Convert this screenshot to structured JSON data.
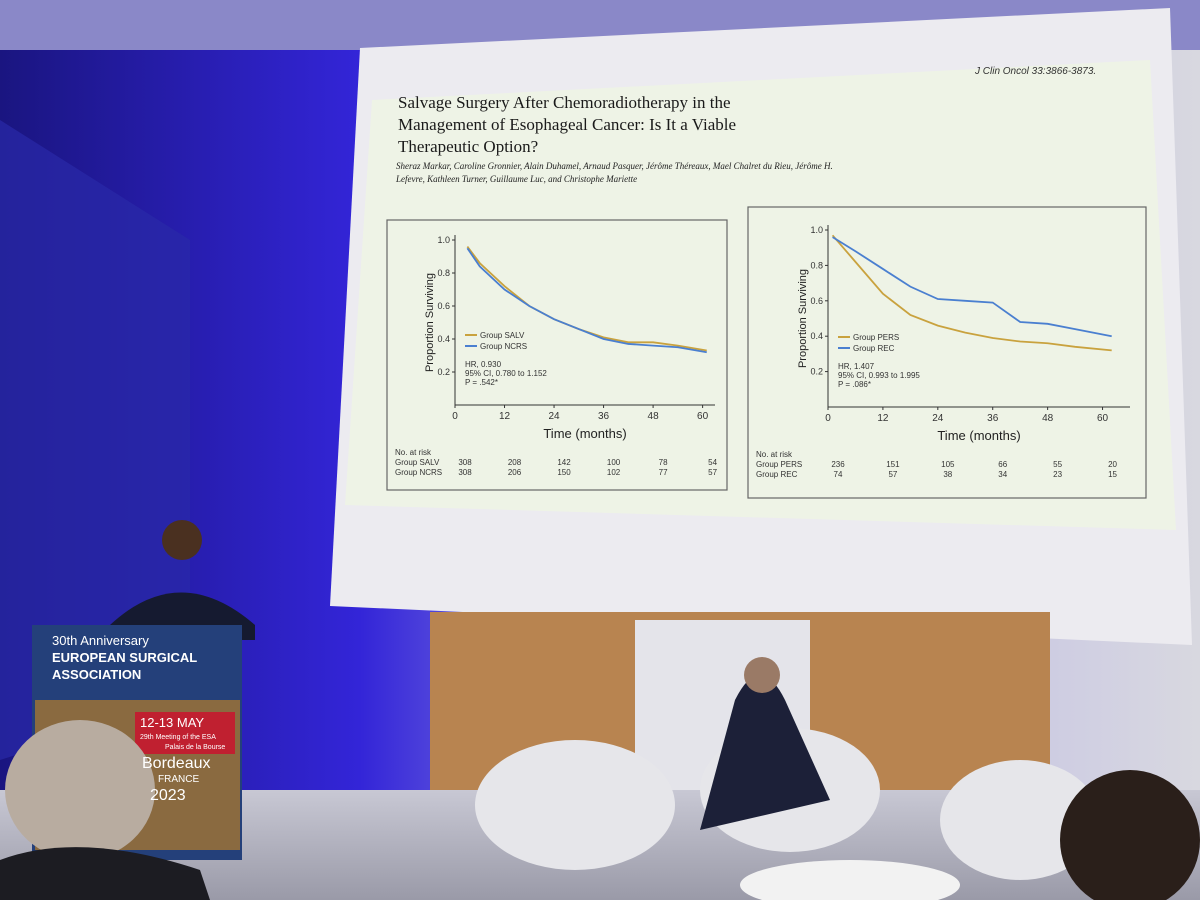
{
  "slide": {
    "citation": "J Clin Oncol 33:3866-3873.",
    "title": "Salvage Surgery After Chemoradiotherapy in the Management of Esophageal Cancer: Is It a Viable Therapeutic Option?",
    "authors": "Sheraz Markar, Caroline Gronnier, Alain Duhamel, Arnaud Pasquer, Jérôme Théreaux, Mael Chalret du Rieu, Jérôme H. Lefevre, Kathleen Turner, Guillaume Luc, and Christophe Mariette"
  },
  "chart_data": [
    {
      "type": "line",
      "x_label": "Time (months)",
      "y_label": "Proportion Surviving",
      "x": [
        3,
        6,
        12,
        18,
        24,
        30,
        36,
        42,
        48,
        54,
        61
      ],
      "series": [
        {
          "name": "Group SALV",
          "color": "#c9a23e",
          "values": [
            0.96,
            0.86,
            0.72,
            0.6,
            0.52,
            0.46,
            0.41,
            0.38,
            0.38,
            0.36,
            0.33
          ]
        },
        {
          "name": "Group NCRS",
          "color": "#4a7fd0",
          "values": [
            0.95,
            0.84,
            0.7,
            0.6,
            0.52,
            0.46,
            0.4,
            0.37,
            0.36,
            0.35,
            0.32
          ]
        }
      ],
      "xlim": [
        0,
        63
      ],
      "xticks": [
        0,
        12,
        24,
        36,
        48,
        60
      ],
      "ylim": [
        0,
        1
      ],
      "yticks": [
        0.2,
        0.4,
        0.6,
        0.8,
        {
          "value": 1,
          "label": "1.0"
        }
      ],
      "annotations": [
        "HR, 0.930",
        "95% CI, 0.780 to 1.152",
        "P = .542*"
      ],
      "risk_table": {
        "label": "No. at risk",
        "rows": [
          {
            "name": "Group SALV",
            "values": [
              308,
              208,
              142,
              100,
              78,
              54
            ]
          },
          {
            "name": "Group NCRS",
            "values": [
              308,
              206,
              150,
              102,
              77,
              57
            ]
          }
        ]
      }
    },
    {
      "type": "line",
      "x_label": "Time (months)",
      "y_label": "Proportion Surviving",
      "x": [
        1,
        6,
        12,
        18,
        24,
        30,
        36,
        42,
        48,
        54,
        62
      ],
      "series": [
        {
          "name": "Group PERS",
          "color": "#c9a23e",
          "values": [
            0.97,
            0.82,
            0.64,
            0.52,
            0.46,
            0.42,
            0.39,
            0.37,
            0.36,
            0.34,
            0.32
          ]
        },
        {
          "name": "Group REC",
          "color": "#4a7fd0",
          "values": [
            0.96,
            0.88,
            0.78,
            0.68,
            0.61,
            0.6,
            0.59,
            0.48,
            0.47,
            0.44,
            0.4
          ]
        }
      ],
      "xlim": [
        0,
        66
      ],
      "xticks": [
        0,
        12,
        24,
        36,
        48,
        60
      ],
      "ylim": [
        0,
        1
      ],
      "yticks": [
        0.2,
        0.4,
        0.6,
        0.8,
        {
          "value": 1,
          "label": "1.0"
        }
      ],
      "annotations": [
        "HR, 1.407",
        "95% CI, 0.993 to 1.995",
        "P = .086*"
      ],
      "risk_table": {
        "label": "No. at risk",
        "rows": [
          {
            "name": "Group PERS",
            "values": [
              236,
              151,
              105,
              66,
              55,
              20
            ]
          },
          {
            "name": "Group REC",
            "values": [
              74,
              57,
              38,
              34,
              23,
              15
            ]
          }
        ]
      }
    }
  ],
  "banner": {
    "anniversary": "30th Anniversary",
    "line1": "EUROPEAN SURGICAL",
    "line2": "ASSOCIATION",
    "dates": "12-13 MAY",
    "meeting": "29th Meeting of the ESA",
    "venue": "Palais de la Bourse",
    "city": "Bordeaux",
    "country": "FRANCE",
    "year": "2023"
  }
}
